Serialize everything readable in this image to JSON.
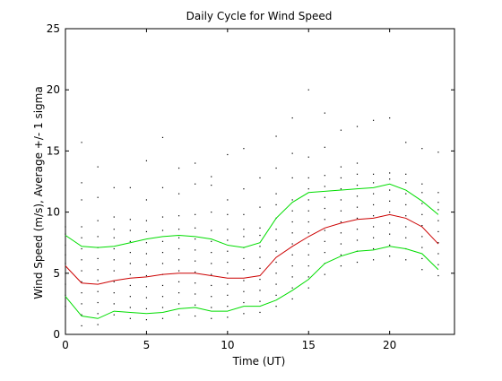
{
  "chart_data": {
    "type": "line",
    "title": "Daily Cycle for Wind Speed",
    "xlabel": "Time (UT)",
    "ylabel": "Wind Speed (m/s), Average +/- 1 sigma",
    "xlim": [
      0,
      24
    ],
    "ylim": [
      0,
      25
    ],
    "xticks": [
      0,
      5,
      10,
      15,
      20
    ],
    "yticks": [
      0,
      5,
      10,
      15,
      20,
      25
    ],
    "grid": false,
    "x": [
      0,
      1,
      2,
      3,
      4,
      5,
      6,
      7,
      8,
      9,
      10,
      11,
      12,
      13,
      14,
      15,
      16,
      17,
      18,
      19,
      20,
      21,
      22,
      23
    ],
    "series": [
      {
        "role": "mean",
        "color": "#cc0000",
        "values": [
          5.6,
          4.2,
          4.1,
          4.4,
          4.6,
          4.7,
          4.9,
          5.0,
          5.0,
          4.8,
          4.6,
          4.6,
          4.8,
          6.3,
          7.2,
          8.0,
          8.7,
          9.1,
          9.4,
          9.5,
          9.8,
          9.5,
          8.8,
          7.4
        ]
      },
      {
        "role": "mean + 1 sigma",
        "color": "#00dd00",
        "values": [
          8.1,
          7.2,
          7.1,
          7.2,
          7.5,
          7.8,
          8.0,
          8.1,
          8.0,
          7.8,
          7.3,
          7.1,
          7.5,
          9.5,
          10.8,
          11.6,
          11.7,
          11.8,
          11.9,
          12.0,
          12.3,
          11.8,
          10.9,
          9.8
        ]
      },
      {
        "role": "mean - 1 sigma",
        "color": "#00dd00",
        "values": [
          3.1,
          1.5,
          1.3,
          1.9,
          1.8,
          1.7,
          1.8,
          2.1,
          2.2,
          1.9,
          1.9,
          2.3,
          2.3,
          2.8,
          3.6,
          4.5,
          5.8,
          6.4,
          6.8,
          6.9,
          7.2,
          7.0,
          6.6,
          5.3
        ]
      }
    ],
    "scatter_points": [
      [
        0,
        3.2
      ],
      [
        0,
        4.1
      ],
      [
        0,
        5.0
      ],
      [
        0,
        5.8
      ],
      [
        0,
        6.5
      ],
      [
        0,
        7.3
      ],
      [
        0,
        8.2
      ],
      [
        0,
        8.8
      ],
      [
        0,
        2.3
      ],
      [
        1,
        0.7
      ],
      [
        1,
        1.6
      ],
      [
        1,
        2.5
      ],
      [
        1,
        3.4
      ],
      [
        1,
        4.3
      ],
      [
        1,
        5.2
      ],
      [
        1,
        6.1
      ],
      [
        1,
        7.0
      ],
      [
        1,
        7.9
      ],
      [
        1,
        8.8
      ],
      [
        1,
        11.0
      ],
      [
        1,
        12.4
      ],
      [
        1,
        15.7
      ],
      [
        2,
        0.8
      ],
      [
        2,
        1.7
      ],
      [
        2,
        2.6
      ],
      [
        2,
        3.5
      ],
      [
        2,
        4.4
      ],
      [
        2,
        5.3
      ],
      [
        2,
        6.2
      ],
      [
        2,
        7.1
      ],
      [
        2,
        8.0
      ],
      [
        2,
        9.3
      ],
      [
        2,
        11.2
      ],
      [
        2,
        13.7
      ],
      [
        3,
        1.6
      ],
      [
        3,
        2.5
      ],
      [
        3,
        3.4
      ],
      [
        3,
        4.3
      ],
      [
        3,
        5.2
      ],
      [
        3,
        6.1
      ],
      [
        3,
        7.0
      ],
      [
        3,
        7.9
      ],
      [
        3,
        8.6
      ],
      [
        3,
        9.6
      ],
      [
        3,
        12.0
      ],
      [
        4,
        1.3
      ],
      [
        4,
        2.2
      ],
      [
        4,
        3.1
      ],
      [
        4,
        4.0
      ],
      [
        4,
        4.9
      ],
      [
        4,
        5.8
      ],
      [
        4,
        6.7
      ],
      [
        4,
        7.6
      ],
      [
        4,
        8.5
      ],
      [
        4,
        9.4
      ],
      [
        4,
        12.0
      ],
      [
        5,
        1.2
      ],
      [
        5,
        2.1
      ],
      [
        5,
        3.0
      ],
      [
        5,
        3.9
      ],
      [
        5,
        4.8
      ],
      [
        5,
        5.7
      ],
      [
        5,
        6.6
      ],
      [
        5,
        7.5
      ],
      [
        5,
        8.4
      ],
      [
        5,
        9.3
      ],
      [
        5,
        11.0
      ],
      [
        5,
        14.2
      ],
      [
        6,
        1.3
      ],
      [
        6,
        2.2
      ],
      [
        6,
        3.1
      ],
      [
        6,
        4.0
      ],
      [
        6,
        4.9
      ],
      [
        6,
        5.8
      ],
      [
        6,
        6.7
      ],
      [
        6,
        7.6
      ],
      [
        6,
        8.5
      ],
      [
        6,
        9.6
      ],
      [
        6,
        12.0
      ],
      [
        6,
        16.1
      ],
      [
        7,
        1.6
      ],
      [
        7,
        2.5
      ],
      [
        7,
        3.4
      ],
      [
        7,
        4.3
      ],
      [
        7,
        5.2
      ],
      [
        7,
        6.1
      ],
      [
        7,
        7.0
      ],
      [
        7,
        7.9
      ],
      [
        7,
        8.6
      ],
      [
        7,
        9.7
      ],
      [
        7,
        11.5
      ],
      [
        7,
        13.6
      ],
      [
        8,
        1.5
      ],
      [
        8,
        2.4
      ],
      [
        8,
        3.3
      ],
      [
        8,
        4.2
      ],
      [
        8,
        5.1
      ],
      [
        8,
        6.0
      ],
      [
        8,
        6.9
      ],
      [
        8,
        7.8
      ],
      [
        8,
        8.7
      ],
      [
        8,
        9.8
      ],
      [
        8,
        12.3
      ],
      [
        8,
        14.0
      ],
      [
        9,
        1.3
      ],
      [
        9,
        2.2
      ],
      [
        9,
        3.1
      ],
      [
        9,
        4.0
      ],
      [
        9,
        4.9
      ],
      [
        9,
        5.8
      ],
      [
        9,
        6.7
      ],
      [
        9,
        7.6
      ],
      [
        9,
        8.5
      ],
      [
        9,
        10.0
      ],
      [
        9,
        12.2
      ],
      [
        9,
        12.9
      ],
      [
        10,
        1.4
      ],
      [
        10,
        2.3
      ],
      [
        10,
        3.2
      ],
      [
        10,
        4.1
      ],
      [
        10,
        5.0
      ],
      [
        10,
        5.9
      ],
      [
        10,
        6.8
      ],
      [
        10,
        7.7
      ],
      [
        10,
        8.6
      ],
      [
        10,
        9.8
      ],
      [
        10,
        11.0
      ],
      [
        10,
        14.7
      ],
      [
        11,
        1.7
      ],
      [
        11,
        2.6
      ],
      [
        11,
        3.5
      ],
      [
        11,
        4.4
      ],
      [
        11,
        5.3
      ],
      [
        11,
        6.2
      ],
      [
        11,
        7.1
      ],
      [
        11,
        8.0
      ],
      [
        11,
        8.6
      ],
      [
        11,
        9.8
      ],
      [
        11,
        11.9
      ],
      [
        11,
        15.2
      ],
      [
        12,
        1.8
      ],
      [
        12,
        2.7
      ],
      [
        12,
        3.6
      ],
      [
        12,
        4.5
      ],
      [
        12,
        5.4
      ],
      [
        12,
        6.3
      ],
      [
        12,
        7.2
      ],
      [
        12,
        8.1
      ],
      [
        12,
        8.7
      ],
      [
        12,
        10.4
      ],
      [
        12,
        12.8
      ],
      [
        13,
        2.3
      ],
      [
        13,
        3.2
      ],
      [
        13,
        4.1
      ],
      [
        13,
        5.0
      ],
      [
        13,
        5.9
      ],
      [
        13,
        6.8
      ],
      [
        13,
        7.7
      ],
      [
        13,
        8.6
      ],
      [
        13,
        9.5
      ],
      [
        13,
        10.6
      ],
      [
        13,
        11.5
      ],
      [
        13,
        13.6
      ],
      [
        13,
        16.2
      ],
      [
        14,
        2.9
      ],
      [
        14,
        3.8
      ],
      [
        14,
        4.7
      ],
      [
        14,
        5.6
      ],
      [
        14,
        6.5
      ],
      [
        14,
        7.4
      ],
      [
        14,
        8.3
      ],
      [
        14,
        9.2
      ],
      [
        14,
        10.1
      ],
      [
        14,
        11.0
      ],
      [
        14,
        12.8
      ],
      [
        14,
        14.8
      ],
      [
        14,
        17.7
      ],
      [
        15,
        3.8
      ],
      [
        15,
        4.7
      ],
      [
        15,
        5.6
      ],
      [
        15,
        6.5
      ],
      [
        15,
        7.4
      ],
      [
        15,
        8.3
      ],
      [
        15,
        9.2
      ],
      [
        15,
        10.1
      ],
      [
        15,
        11.0
      ],
      [
        15,
        11.9
      ],
      [
        15,
        12.8
      ],
      [
        15,
        14.5
      ],
      [
        15,
        20.0
      ],
      [
        16,
        4.9
      ],
      [
        16,
        5.8
      ],
      [
        16,
        6.7
      ],
      [
        16,
        7.6
      ],
      [
        16,
        8.5
      ],
      [
        16,
        9.4
      ],
      [
        16,
        10.3
      ],
      [
        16,
        11.2
      ],
      [
        16,
        12.1
      ],
      [
        16,
        13.0
      ],
      [
        16,
        15.3
      ],
      [
        16,
        18.1
      ],
      [
        17,
        5.6
      ],
      [
        17,
        6.5
      ],
      [
        17,
        7.4
      ],
      [
        17,
        8.3
      ],
      [
        17,
        9.2
      ],
      [
        17,
        10.1
      ],
      [
        17,
        11.0
      ],
      [
        17,
        11.9
      ],
      [
        17,
        12.8
      ],
      [
        17,
        13.7
      ],
      [
        17,
        16.7
      ],
      [
        18,
        5.9
      ],
      [
        18,
        6.8
      ],
      [
        18,
        7.7
      ],
      [
        18,
        8.6
      ],
      [
        18,
        9.5
      ],
      [
        18,
        10.4
      ],
      [
        18,
        11.3
      ],
      [
        18,
        12.2
      ],
      [
        18,
        13.1
      ],
      [
        18,
        14.0
      ],
      [
        18,
        17.0
      ],
      [
        19,
        6.1
      ],
      [
        19,
        7.0
      ],
      [
        19,
        7.9
      ],
      [
        19,
        8.8
      ],
      [
        19,
        9.7
      ],
      [
        19,
        10.6
      ],
      [
        19,
        11.5
      ],
      [
        19,
        12.4
      ],
      [
        19,
        13.1
      ],
      [
        19,
        17.5
      ],
      [
        20,
        6.4
      ],
      [
        20,
        7.3
      ],
      [
        20,
        8.2
      ],
      [
        20,
        9.1
      ],
      [
        20,
        10.0
      ],
      [
        20,
        10.9
      ],
      [
        20,
        11.8
      ],
      [
        20,
        12.7
      ],
      [
        20,
        13.2
      ],
      [
        20,
        17.7
      ],
      [
        21,
        6.1
      ],
      [
        21,
        7.0
      ],
      [
        21,
        7.9
      ],
      [
        21,
        8.8
      ],
      [
        21,
        9.7
      ],
      [
        21,
        10.6
      ],
      [
        21,
        11.5
      ],
      [
        21,
        12.4
      ],
      [
        21,
        13.1
      ],
      [
        21,
        15.7
      ],
      [
        22,
        5.3
      ],
      [
        22,
        6.2
      ],
      [
        22,
        7.1
      ],
      [
        22,
        8.0
      ],
      [
        22,
        8.9
      ],
      [
        22,
        9.8
      ],
      [
        22,
        10.7
      ],
      [
        22,
        11.6
      ],
      [
        22,
        12.3
      ],
      [
        22,
        15.2
      ],
      [
        23,
        4.8
      ],
      [
        23,
        5.7
      ],
      [
        23,
        6.6
      ],
      [
        23,
        7.5
      ],
      [
        23,
        8.4
      ],
      [
        23,
        9.3
      ],
      [
        23,
        10.2
      ],
      [
        23,
        10.8
      ],
      [
        23,
        11.6
      ],
      [
        23,
        14.9
      ]
    ]
  }
}
